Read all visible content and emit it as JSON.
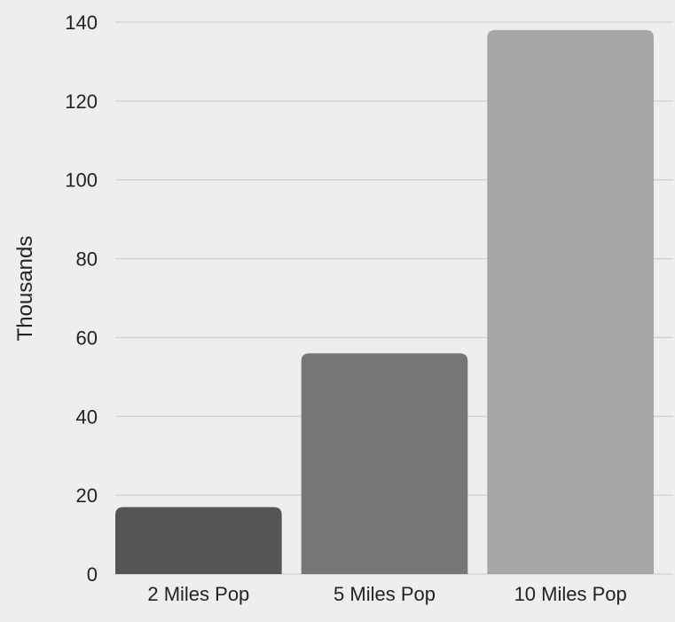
{
  "chart_data": {
    "type": "bar",
    "title": "",
    "xlabel": "",
    "ylabel": "Thousands",
    "categories": [
      "2 Miles Pop",
      "5 Miles Pop",
      "10 Miles Pop"
    ],
    "values": [
      17,
      56,
      138
    ],
    "ylim": [
      0,
      140
    ],
    "yticks": [
      0,
      20,
      40,
      60,
      80,
      100,
      120,
      140
    ],
    "grid": true,
    "legend": "none",
    "bar_colors": [
      "#555555",
      "#767676",
      "#a6a6a6"
    ],
    "gridline_color": "#c8c8c8",
    "background_color": "#eeeeee"
  }
}
